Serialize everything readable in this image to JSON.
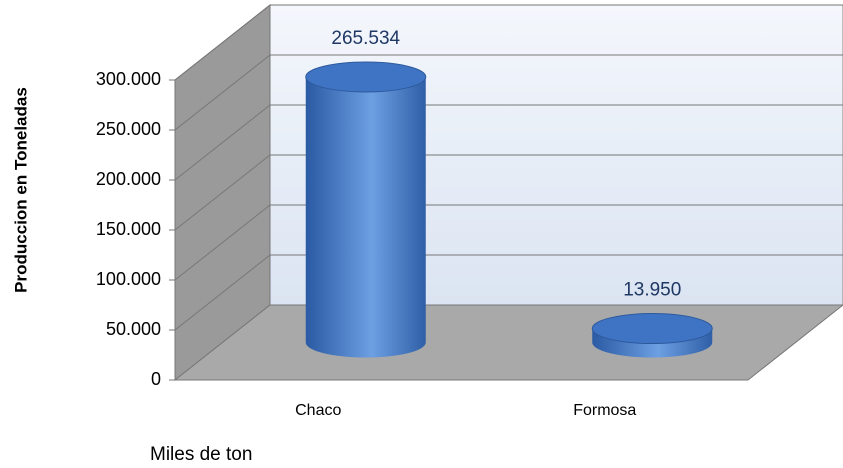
{
  "chart_data": {
    "type": "bar3d",
    "y_axis_label": "Produccion en Toneladas",
    "x_axis_label": "Miles de ton",
    "categories": [
      "Chaco",
      "Formosa"
    ],
    "values": [
      265534,
      13950
    ],
    "value_labels": [
      "265.534",
      "13.950"
    ],
    "color": "#4a7fcf",
    "ylim": [
      0,
      300000
    ],
    "yticks": [
      {
        "value": 0,
        "label": "0"
      },
      {
        "value": 50000,
        "label": "50.000"
      },
      {
        "value": 100000,
        "label": "100.000"
      },
      {
        "value": 150000,
        "label": "150.000"
      },
      {
        "value": 200000,
        "label": "200.000"
      },
      {
        "value": 250000,
        "label": "250.000"
      },
      {
        "value": 300000,
        "label": "300.000"
      }
    ],
    "grid": true
  }
}
